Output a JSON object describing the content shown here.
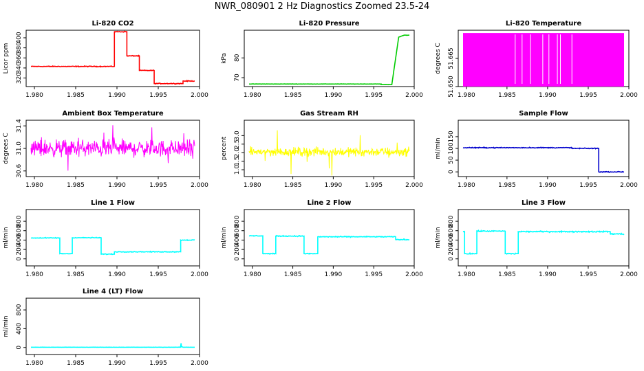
{
  "page": {
    "title": "NWR_080901  2 Hz Diagnostics Zoomed 23.5-24"
  },
  "colors": {
    "red": "#ff0000",
    "green": "#00cc00",
    "magenta": "#ff00ff",
    "yellow": "#ffff00",
    "blue": "#0000cc",
    "cyan": "#00ffff",
    "axis": "#000000"
  },
  "chart_data": [
    {
      "type": "line",
      "title": "Li-820 CO2",
      "ylabel": "Licor ppm",
      "color": "red",
      "xlim": [
        1.979,
        2.0
      ],
      "ylim": [
        303,
        415
      ],
      "xticks": [
        "1.980",
        "1.985",
        "1.990",
        "1.995",
        "2.000"
      ],
      "xtick_values": [
        1.98,
        1.985,
        1.99,
        1.995,
        2.0
      ],
      "yticks": [
        "320",
        "340",
        "360",
        "380",
        "400"
      ],
      "ytick_values": [
        320,
        340,
        360,
        380,
        400
      ],
      "noise": 1.2,
      "series": [
        {
          "x": [
            1.979,
            1.9897,
            1.9897,
            1.9913,
            1.9913,
            1.9929,
            1.9929,
            1.9948,
            1.9948,
            1.9985,
            1.9985,
            2.0
          ],
          "y": [
            343,
            343,
            412,
            412,
            364,
            364,
            335,
            335,
            309,
            309,
            314,
            314
          ]
        }
      ]
    },
    {
      "type": "line",
      "title": "Li-820 Pressure",
      "ylabel": "kPa",
      "color": "green",
      "xlim": [
        1.979,
        2.0
      ],
      "ylim": [
        65.5,
        94
      ],
      "xticks": [
        "1.980",
        "1.985",
        "1.990",
        "1.995",
        "2.000"
      ],
      "xtick_values": [
        1.98,
        1.985,
        1.99,
        1.995,
        2.0
      ],
      "yticks": [
        "70",
        "80"
      ],
      "ytick_values": [
        70,
        80
      ],
      "noise": 0.1,
      "series": [
        {
          "x": [
            1.979,
            1.9963,
            1.9963,
            1.9977,
            1.9986,
            1.9993,
            2.0
          ],
          "y": [
            66.8,
            66.8,
            66.5,
            66.5,
            90.5,
            91.5,
            91.5
          ]
        }
      ]
    },
    {
      "type": "line",
      "title": "Li-820 Temperature",
      "ylabel": "degrees C",
      "color": "magenta",
      "xlim": [
        1.979,
        2.0
      ],
      "ylim": [
        51.65,
        51.68
      ],
      "xticks": [
        "1.980",
        "1.985",
        "1.990",
        "1.995",
        "2.000"
      ],
      "xtick_values": [
        1.98,
        1.985,
        1.99,
        1.995,
        2.0
      ],
      "yticks": [
        "51.650",
        "51.665"
      ],
      "ytick_values": [
        51.65,
        51.665
      ],
      "band": {
        "low": 51.65,
        "high": 51.6785
      },
      "gap_x": [
        1.9858,
        1.9867,
        1.9878,
        1.9894,
        1.9902,
        1.9913,
        1.9917,
        1.9932
      ],
      "series": []
    },
    {
      "type": "line",
      "title": "Ambient Box Temperature",
      "ylabel": "degrees C",
      "color": "magenta",
      "xlim": [
        1.979,
        2.0
      ],
      "ylim": [
        30.5,
        31.5
      ],
      "xticks": [
        "1.980",
        "1.985",
        "1.990",
        "1.995",
        "2.000"
      ],
      "xtick_values": [
        1.98,
        1.985,
        1.99,
        1.995,
        2.0
      ],
      "yticks": [
        "30.6",
        "31.0",
        "31.4"
      ],
      "ytick_values": [
        30.6,
        31.0,
        31.4
      ],
      "noisy": {
        "center": 31.0,
        "amp": 0.22,
        "spike": 0.45
      },
      "series": []
    },
    {
      "type": "line",
      "title": "Gas Stream RH",
      "ylabel": "percent",
      "color": "yellow",
      "xlim": [
        1.979,
        2.0
      ],
      "ylim": [
        0.6,
        3.9
      ],
      "xticks": [
        "1.980",
        "1.985",
        "1.990",
        "1.995",
        "2.000"
      ],
      "xtick_values": [
        1.98,
        1.985,
        1.99,
        1.995,
        2.0
      ],
      "yticks": [
        "1.0",
        "1.5",
        "2.0",
        "2.5",
        "3.0"
      ],
      "ytick_values": [
        1.0,
        1.5,
        2.0,
        2.5,
        3.0
      ],
      "noisy": {
        "center": 2.05,
        "amp": 0.38,
        "spike": 1.4
      },
      "series": []
    },
    {
      "type": "line",
      "title": "Sample Flow",
      "ylabel": "ml/min",
      "color": "blue",
      "xlim": [
        1.979,
        2.0
      ],
      "ylim": [
        -20,
        220
      ],
      "xticks": [
        "1.980",
        "1.985",
        "1.990",
        "1.995",
        "2.000"
      ],
      "xtick_values": [
        1.98,
        1.985,
        1.99,
        1.995,
        2.0
      ],
      "yticks": [
        "0",
        "50",
        "100",
        "150"
      ],
      "ytick_values": [
        0,
        50,
        100,
        150
      ],
      "noise": 2.5,
      "series": [
        {
          "x": [
            1.979,
            1.9932,
            1.9932,
            1.9967,
            1.9967,
            2.0
          ],
          "y": [
            103,
            103,
            100,
            100,
            0,
            0
          ]
        }
      ]
    },
    {
      "type": "line",
      "title": "Line 1 Flow",
      "ylabel": "ml/min",
      "color": "cyan",
      "xlim": [
        1.979,
        2.0
      ],
      "ylim": [
        -150,
        1050
      ],
      "xticks": [
        "1.980",
        "1.985",
        "1.990",
        "1.995",
        "2.000"
      ],
      "xtick_values": [
        1.98,
        1.985,
        1.99,
        1.995,
        2.0
      ],
      "yticks": [
        "0",
        "200",
        "400",
        "600",
        "800"
      ],
      "ytick_values": [
        0,
        200,
        400,
        600,
        800
      ],
      "noise": 12,
      "series": [
        {
          "x": [
            1.979,
            1.9827,
            1.9827,
            1.9843,
            1.9843,
            1.988,
            1.988,
            1.9897,
            1.9897,
            1.9982,
            1.9982,
            2.0
          ],
          "y": [
            445,
            445,
            110,
            110,
            450,
            450,
            100,
            100,
            150,
            150,
            400,
            400
          ]
        }
      ]
    },
    {
      "type": "line",
      "title": "Line 2 Flow",
      "ylabel": "ml/min",
      "color": "cyan",
      "xlim": [
        1.979,
        2.0
      ],
      "ylim": [
        -150,
        1050
      ],
      "xticks": [
        "1.980",
        "1.985",
        "1.990",
        "1.995",
        "2.000"
      ],
      "xtick_values": [
        1.98,
        1.985,
        1.99,
        1.995,
        2.0
      ],
      "yticks": [
        "0",
        "200",
        "400",
        "600",
        "800"
      ],
      "ytick_values": [
        0,
        200,
        400,
        600,
        800
      ],
      "noise": 14,
      "series": [
        {
          "x": [
            1.979,
            1.9808,
            1.9808,
            1.9825,
            1.9825,
            1.9862,
            1.9862,
            1.988,
            1.988,
            1.9982,
            1.9982,
            2.0
          ],
          "y": [
            490,
            490,
            110,
            110,
            485,
            485,
            110,
            110,
            470,
            470,
            410,
            410
          ]
        }
      ]
    },
    {
      "type": "line",
      "title": "Line 3 Flow",
      "ylabel": "ml/min",
      "color": "cyan",
      "xlim": [
        1.979,
        2.0
      ],
      "ylim": [
        -150,
        1050
      ],
      "xticks": [
        "1.980",
        "1.985",
        "1.990",
        "1.995",
        "2.000"
      ],
      "xtick_values": [
        1.98,
        1.985,
        1.99,
        1.995,
        2.0
      ],
      "yticks": [
        "0",
        "200",
        "400",
        "600",
        "800"
      ],
      "ytick_values": [
        0,
        200,
        400,
        600,
        800
      ],
      "noise": 18,
      "series": [
        {
          "x": [
            1.979,
            1.9792,
            1.9792,
            1.9808,
            1.9808,
            1.9845,
            1.9845,
            1.9862,
            1.9862,
            1.9982,
            1.9982,
            2.0
          ],
          "y": [
            580,
            580,
            110,
            110,
            590,
            590,
            110,
            110,
            580,
            580,
            530,
            530
          ]
        }
      ]
    },
    {
      "type": "line",
      "title": "Line 4 (LT) Flow",
      "ylabel": "ml/min",
      "color": "cyan",
      "xlim": [
        1.979,
        2.0
      ],
      "ylim": [
        -150,
        1050
      ],
      "xticks": [
        "1.980",
        "1.985",
        "1.990",
        "1.995",
        "2.000"
      ],
      "xtick_values": [
        1.98,
        1.985,
        1.99,
        1.995,
        2.0
      ],
      "yticks": [
        "0",
        "400",
        "800"
      ],
      "ytick_values": [
        0,
        400,
        800
      ],
      "noise": 3,
      "series": [
        {
          "x": [
            1.979,
            1.9982,
            1.9982,
            1.99825,
            1.9983,
            1.9985,
            2.0
          ],
          "y": [
            5,
            5,
            25,
            90,
            20,
            5,
            5
          ]
        }
      ]
    }
  ]
}
